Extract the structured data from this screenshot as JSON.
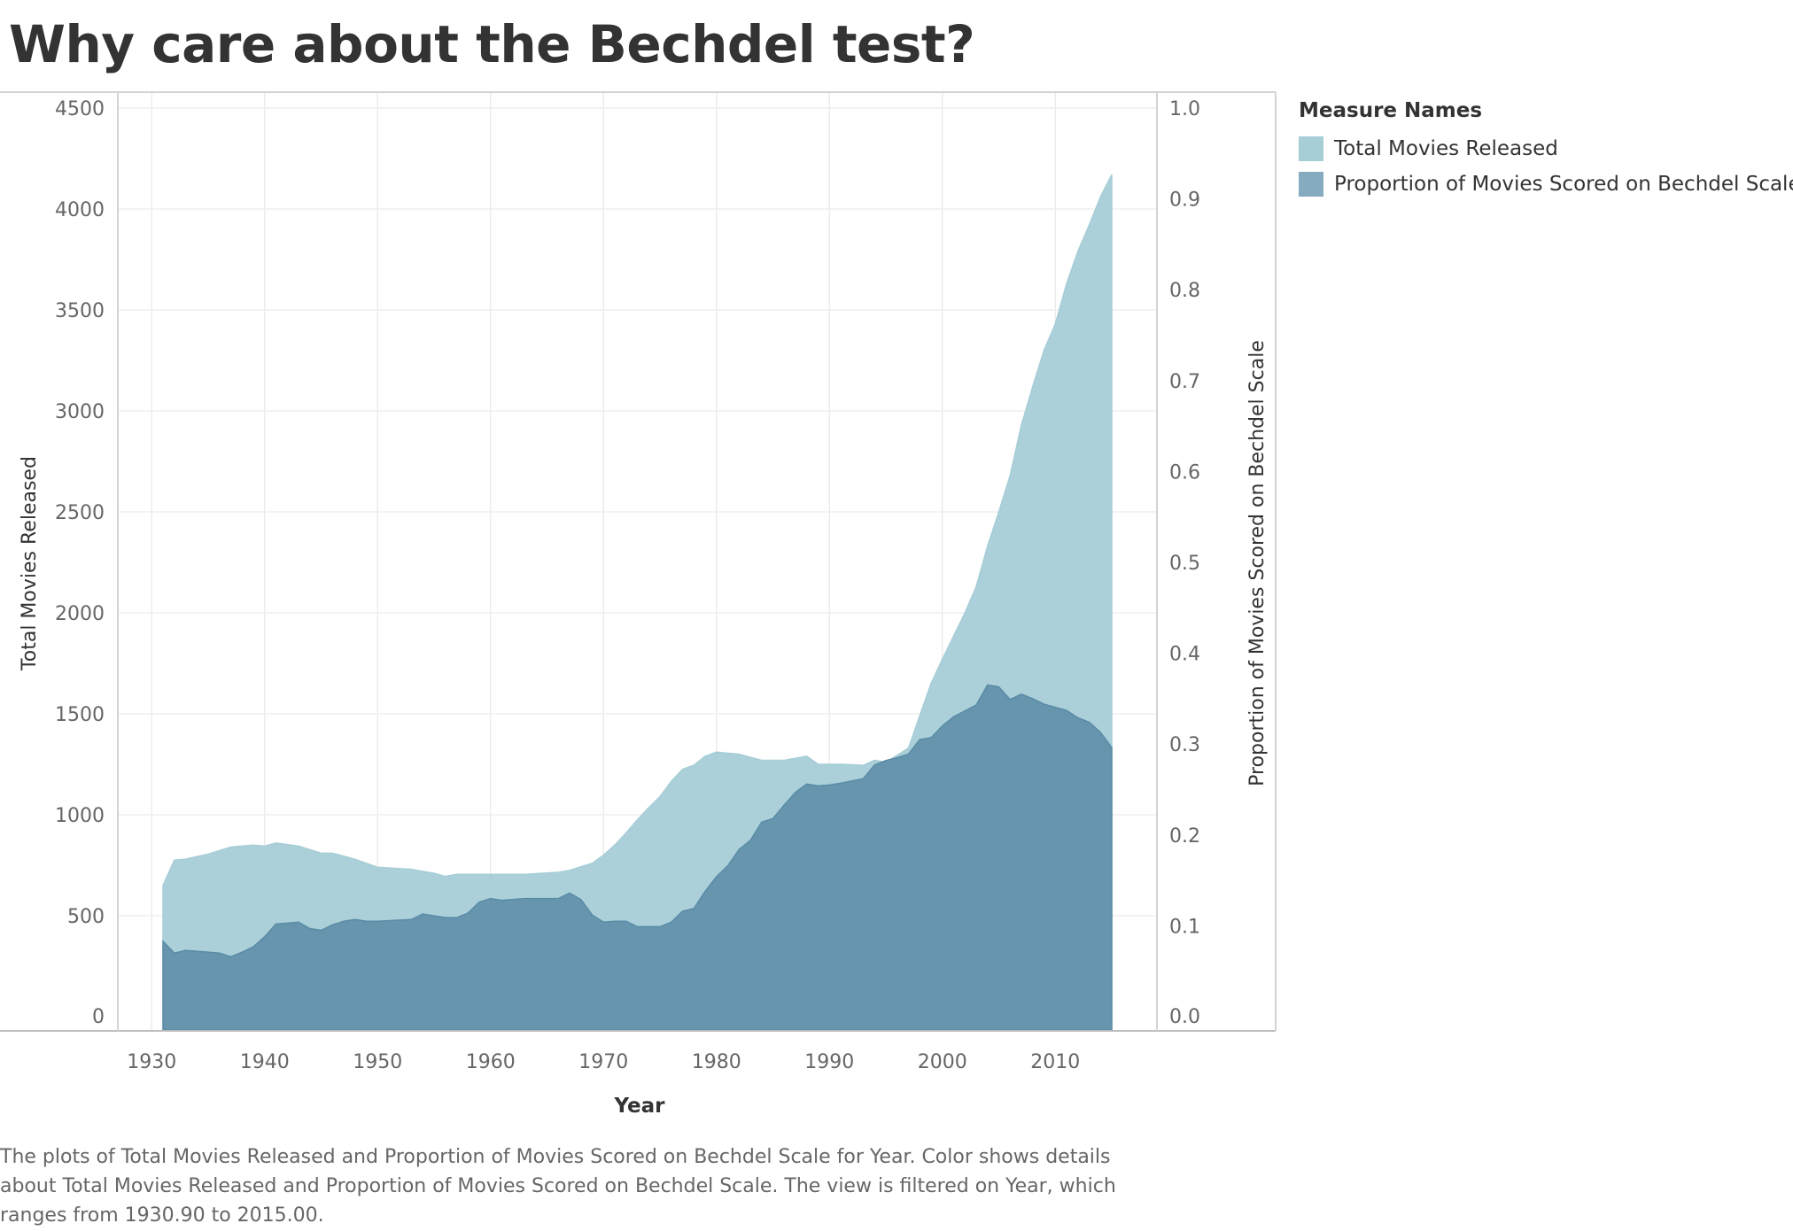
{
  "page": {
    "title": "Why care about the Bechdel test?",
    "caption": "The plots of Total Movies Released and Proportion of Movies Scored on Bechdel Scale for Year.  Color shows details about Total Movies Released and Proportion of Movies Scored on Bechdel Scale. The view is filtered on Year, which ranges from 1930.90 to 2015.00."
  },
  "legend": {
    "title": "Measure Names",
    "items": [
      {
        "label": "Total Movies Released",
        "color": "#a7cdd7"
      },
      {
        "label": "Proportion of Movies Scored on Bechdel Scale",
        "color": "#86aac0"
      }
    ]
  },
  "chart_data": {
    "type": "area",
    "title": "Why care about the Bechdel test?",
    "xlabel": "Year",
    "ylabel": "Total Movies Released",
    "y2label": "Proportion of Movies Scored on Bechdel Scale",
    "xlim": [
      1927,
      2019
    ],
    "ylim": [
      0,
      4500
    ],
    "y2lim": [
      0,
      1.0
    ],
    "x_ticks": [
      1930,
      1940,
      1950,
      1960,
      1970,
      1980,
      1990,
      2000,
      2010
    ],
    "y_ticks": [
      0,
      500,
      1000,
      1500,
      2000,
      2500,
      3000,
      3500,
      4000,
      4500
    ],
    "y2_ticks": [
      "0.0",
      "0.1",
      "0.2",
      "0.3",
      "0.4",
      "0.5",
      "0.6",
      "0.7",
      "0.8",
      "0.9",
      "1.0"
    ],
    "grid": true,
    "legend_position": "right",
    "series": [
      {
        "name": "Total Movies Released",
        "axis": "left",
        "color": "#a7cdd7",
        "points": [
          [
            1931,
            650
          ],
          [
            1932,
            775
          ],
          [
            1933,
            780
          ],
          [
            1935,
            805
          ],
          [
            1937,
            840
          ],
          [
            1939,
            850
          ],
          [
            1940,
            845
          ],
          [
            1941,
            860
          ],
          [
            1943,
            845
          ],
          [
            1945,
            810
          ],
          [
            1946,
            810
          ],
          [
            1948,
            780
          ],
          [
            1950,
            740
          ],
          [
            1953,
            730
          ],
          [
            1955,
            710
          ],
          [
            1956,
            695
          ],
          [
            1957,
            705
          ],
          [
            1960,
            705
          ],
          [
            1963,
            705
          ],
          [
            1966,
            715
          ],
          [
            1967,
            725
          ],
          [
            1969,
            760
          ],
          [
            1970,
            800
          ],
          [
            1971,
            850
          ],
          [
            1972,
            910
          ],
          [
            1973,
            975
          ],
          [
            1974,
            1035
          ],
          [
            1975,
            1090
          ],
          [
            1976,
            1165
          ],
          [
            1977,
            1225
          ],
          [
            1978,
            1245
          ],
          [
            1979,
            1290
          ],
          [
            1980,
            1310
          ],
          [
            1982,
            1300
          ],
          [
            1984,
            1270
          ],
          [
            1986,
            1270
          ],
          [
            1988,
            1290
          ],
          [
            1989,
            1250
          ],
          [
            1991,
            1250
          ],
          [
            1993,
            1245
          ],
          [
            1994,
            1270
          ],
          [
            1995,
            1260
          ],
          [
            1997,
            1330
          ],
          [
            1998,
            1490
          ],
          [
            1999,
            1650
          ],
          [
            2000,
            1770
          ],
          [
            2002,
            2000
          ],
          [
            2003,
            2130
          ],
          [
            2004,
            2330
          ],
          [
            2005,
            2500
          ],
          [
            2006,
            2680
          ],
          [
            2007,
            2930
          ],
          [
            2008,
            3120
          ],
          [
            2009,
            3300
          ],
          [
            2010,
            3430
          ],
          [
            2011,
            3630
          ],
          [
            2012,
            3790
          ],
          [
            2013,
            3920
          ],
          [
            2014,
            4060
          ],
          [
            2015,
            4170
          ]
        ]
      },
      {
        "name": "Proportion of Movies Scored on Bechdel Scale",
        "axis": "right",
        "color": "#5a8ba6",
        "points": [
          [
            1931,
            0.083
          ],
          [
            1932,
            0.07
          ],
          [
            1933,
            0.073
          ],
          [
            1934,
            0.072
          ],
          [
            1935,
            0.071
          ],
          [
            1936,
            0.07
          ],
          [
            1937,
            0.066
          ],
          [
            1938,
            0.071
          ],
          [
            1939,
            0.077
          ],
          [
            1940,
            0.088
          ],
          [
            1941,
            0.102
          ],
          [
            1942,
            0.103
          ],
          [
            1943,
            0.104
          ],
          [
            1944,
            0.097
          ],
          [
            1945,
            0.095
          ],
          [
            1946,
            0.101
          ],
          [
            1947,
            0.105
          ],
          [
            1948,
            0.107
          ],
          [
            1949,
            0.105
          ],
          [
            1950,
            0.105
          ],
          [
            1953,
            0.107
          ],
          [
            1954,
            0.113
          ],
          [
            1955,
            0.111
          ],
          [
            1956,
            0.109
          ],
          [
            1957,
            0.109
          ],
          [
            1958,
            0.114
          ],
          [
            1959,
            0.126
          ],
          [
            1960,
            0.13
          ],
          [
            1961,
            0.128
          ],
          [
            1963,
            0.13
          ],
          [
            1966,
            0.13
          ],
          [
            1967,
            0.136
          ],
          [
            1968,
            0.129
          ],
          [
            1969,
            0.112
          ],
          [
            1970,
            0.104
          ],
          [
            1971,
            0.105
          ],
          [
            1972,
            0.105
          ],
          [
            1973,
            0.099
          ],
          [
            1974,
            0.099
          ],
          [
            1975,
            0.099
          ],
          [
            1976,
            0.104
          ],
          [
            1977,
            0.116
          ],
          [
            1978,
            0.119
          ],
          [
            1979,
            0.138
          ],
          [
            1980,
            0.154
          ],
          [
            1981,
            0.166
          ],
          [
            1982,
            0.184
          ],
          [
            1983,
            0.194
          ],
          [
            1984,
            0.214
          ],
          [
            1985,
            0.218
          ],
          [
            1986,
            0.233
          ],
          [
            1987,
            0.247
          ],
          [
            1988,
            0.256
          ],
          [
            1989,
            0.254
          ],
          [
            1990,
            0.255
          ],
          [
            1991,
            0.257
          ],
          [
            1993,
            0.262
          ],
          [
            1994,
            0.277
          ],
          [
            1995,
            0.282
          ],
          [
            1996,
            0.285
          ],
          [
            1997,
            0.289
          ],
          [
            1998,
            0.305
          ],
          [
            1999,
            0.307
          ],
          [
            2000,
            0.32
          ],
          [
            2001,
            0.33
          ],
          [
            2003,
            0.343
          ],
          [
            2004,
            0.365
          ],
          [
            2005,
            0.363
          ],
          [
            2006,
            0.349
          ],
          [
            2007,
            0.355
          ],
          [
            2008,
            0.35
          ],
          [
            2009,
            0.344
          ],
          [
            2011,
            0.337
          ],
          [
            2012,
            0.329
          ],
          [
            2013,
            0.324
          ],
          [
            2014,
            0.313
          ],
          [
            2015,
            0.296
          ]
        ]
      }
    ]
  }
}
